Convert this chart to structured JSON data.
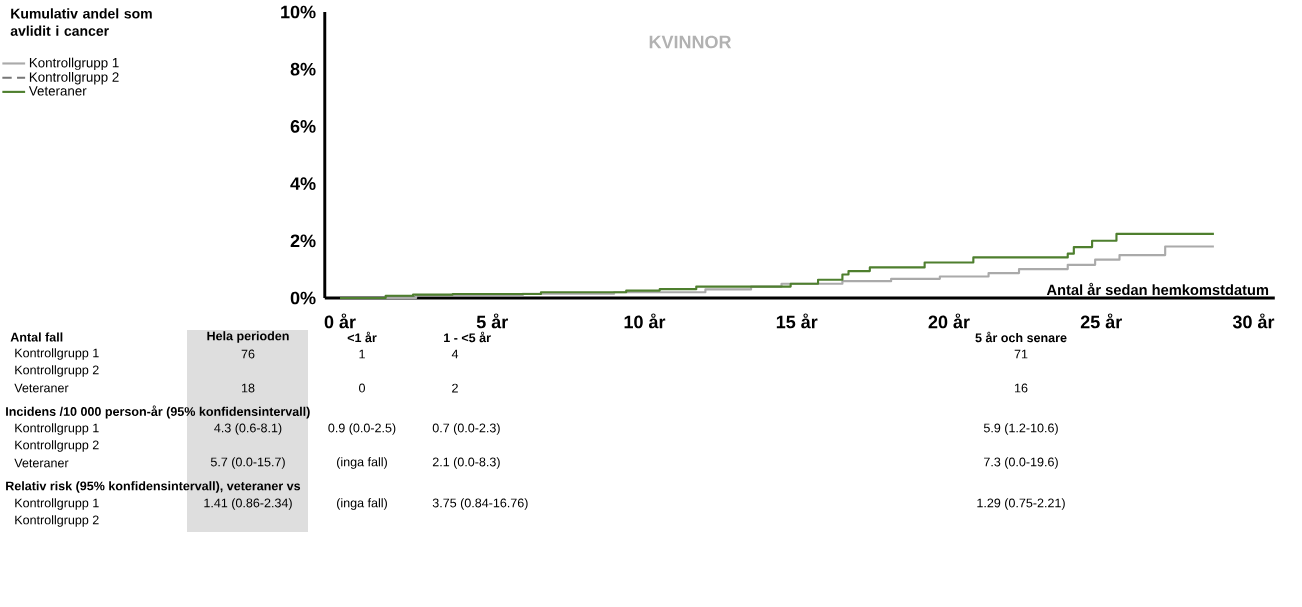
{
  "chart_data": {
    "type": "step",
    "title": "Kumulativ andel som avlidit i cancer",
    "subtitle": "KVINNOR",
    "xlabel": "Antal år sedan hemkomstdatum",
    "xlim": [
      -0.5,
      30.7
    ],
    "ylim": [
      0,
      10
    ],
    "xticks": [
      {
        "value": 0,
        "label": "0 år"
      },
      {
        "value": 5,
        "label": "5 år"
      },
      {
        "value": 10,
        "label": "10 år"
      },
      {
        "value": 15,
        "label": "15 år"
      },
      {
        "value": 20,
        "label": "20 år"
      },
      {
        "value": 25,
        "label": "25 år"
      },
      {
        "value": 30,
        "label": "30 år"
      }
    ],
    "yticks": [
      {
        "value": 0,
        "label": "0%"
      },
      {
        "value": 2,
        "label": "2%"
      },
      {
        "value": 4,
        "label": "4%"
      },
      {
        "value": 6,
        "label": "6%"
      },
      {
        "value": 8,
        "label": "8%"
      },
      {
        "value": 10,
        "label": "10%"
      }
    ],
    "grid": false,
    "legend": "top left",
    "marker": "none",
    "series": [
      {
        "name": "Kontrollgrupp 1",
        "color": "#aaaaaa",
        "line_style": "solid",
        "x": [
          0,
          2.5,
          6,
          9,
          12,
          13.5,
          14.5,
          16.5,
          18.1,
          19.7,
          21.3,
          22.3,
          23.9,
          24.8,
          25.6,
          27.1,
          28.7
        ],
        "values": [
          0,
          0.1,
          0.15,
          0.2,
          0.3,
          0.4,
          0.5,
          0.59,
          0.67,
          0.75,
          0.87,
          1.01,
          1.16,
          1.34,
          1.5,
          1.8,
          1.8
        ]
      },
      {
        "name": "Kontrollgrupp 2",
        "color": "#777777",
        "line_style": "dashed"
      },
      {
        "name": "Veteraner",
        "color": "#4e7f2e",
        "line_style": "solid",
        "x": [
          0,
          1.5,
          2.4,
          3.7,
          6.6,
          9.4,
          10.5,
          11.7,
          14.8,
          15.7,
          16.5,
          16.7,
          17.4,
          19.2,
          20.8,
          23.9,
          24.1,
          24.7,
          25.5,
          28.7
        ],
        "values": [
          0,
          0.08,
          0.12,
          0.14,
          0.2,
          0.26,
          0.31,
          0.4,
          0.5,
          0.64,
          0.82,
          0.94,
          1.07,
          1.24,
          1.42,
          1.55,
          1.78,
          2.0,
          2.24,
          2.24
        ]
      }
    ],
    "annotations": [
      "Antal fall",
      "Hela perioden",
      "<1 år",
      "1 - <5 år",
      "5 år och senare",
      "Kontrollgrupp 1",
      "76",
      "1",
      "4",
      "71",
      "Kontrollgrupp 2",
      "Veteraner",
      "18",
      "0",
      "2",
      "16",
      "Incidens /10 000 person-år (95% konfidensintervall)",
      "Kontrollgrupp 1",
      "4.3 (0.6-8.1)",
      "0.9 (0.0-2.5)",
      "0.7 (0.0-2.3)",
      "5.9 (1.2-10.6)",
      "Kontrollgrupp 2",
      "Veteraner",
      "5.7 (0.0-15.7)",
      "(inga fall)",
      "2.1 (0.0-8.3)",
      "7.3 (0.0-19.6)",
      "Relativ risk (95% konfidensintervall), veteraner vs",
      "Kontrollgrupp 1",
      "1.41 (0.86-2.34)",
      "(inga fall)",
      "3.75 (0.84-16.76)",
      "1.29 (0.75-2.21)",
      "Kontrollgrupp 2"
    ]
  }
}
